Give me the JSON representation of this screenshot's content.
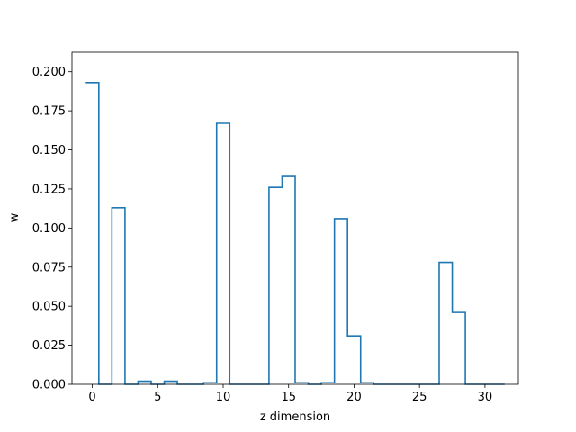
{
  "chart_data": {
    "type": "step",
    "title": "",
    "xlabel": "z dimension",
    "ylabel": "w",
    "x": [
      0,
      1,
      2,
      3,
      4,
      5,
      6,
      7,
      8,
      9,
      10,
      11,
      12,
      13,
      14,
      15,
      16,
      17,
      18,
      19,
      20,
      21,
      22,
      23,
      24,
      25,
      26,
      27,
      28,
      29,
      30,
      31
    ],
    "values": [
      0.193,
      0.0,
      0.113,
      0.0,
      0.002,
      0.0,
      0.002,
      0.0,
      0.0,
      0.001,
      0.167,
      0.0,
      0.0,
      0.0,
      0.126,
      0.133,
      0.001,
      0.0,
      0.001,
      0.106,
      0.031,
      0.001,
      0.0,
      0.0,
      0.0,
      0.0,
      0.0,
      0.078,
      0.046,
      0.0,
      0.0,
      0.0
    ],
    "xlim": [
      -1.55,
      32.55
    ],
    "ylim": [
      0.0,
      0.2125
    ],
    "xticks": [
      0,
      5,
      10,
      15,
      20,
      25,
      30
    ],
    "yticks": [
      0.0,
      0.025,
      0.05,
      0.075,
      0.1,
      0.125,
      0.15,
      0.175,
      0.2
    ],
    "ytick_labels": [
      "0.000",
      "0.025",
      "0.050",
      "0.075",
      "0.100",
      "0.125",
      "0.150",
      "0.175",
      "0.200"
    ],
    "grid": false,
    "color": "#1f77b4"
  }
}
